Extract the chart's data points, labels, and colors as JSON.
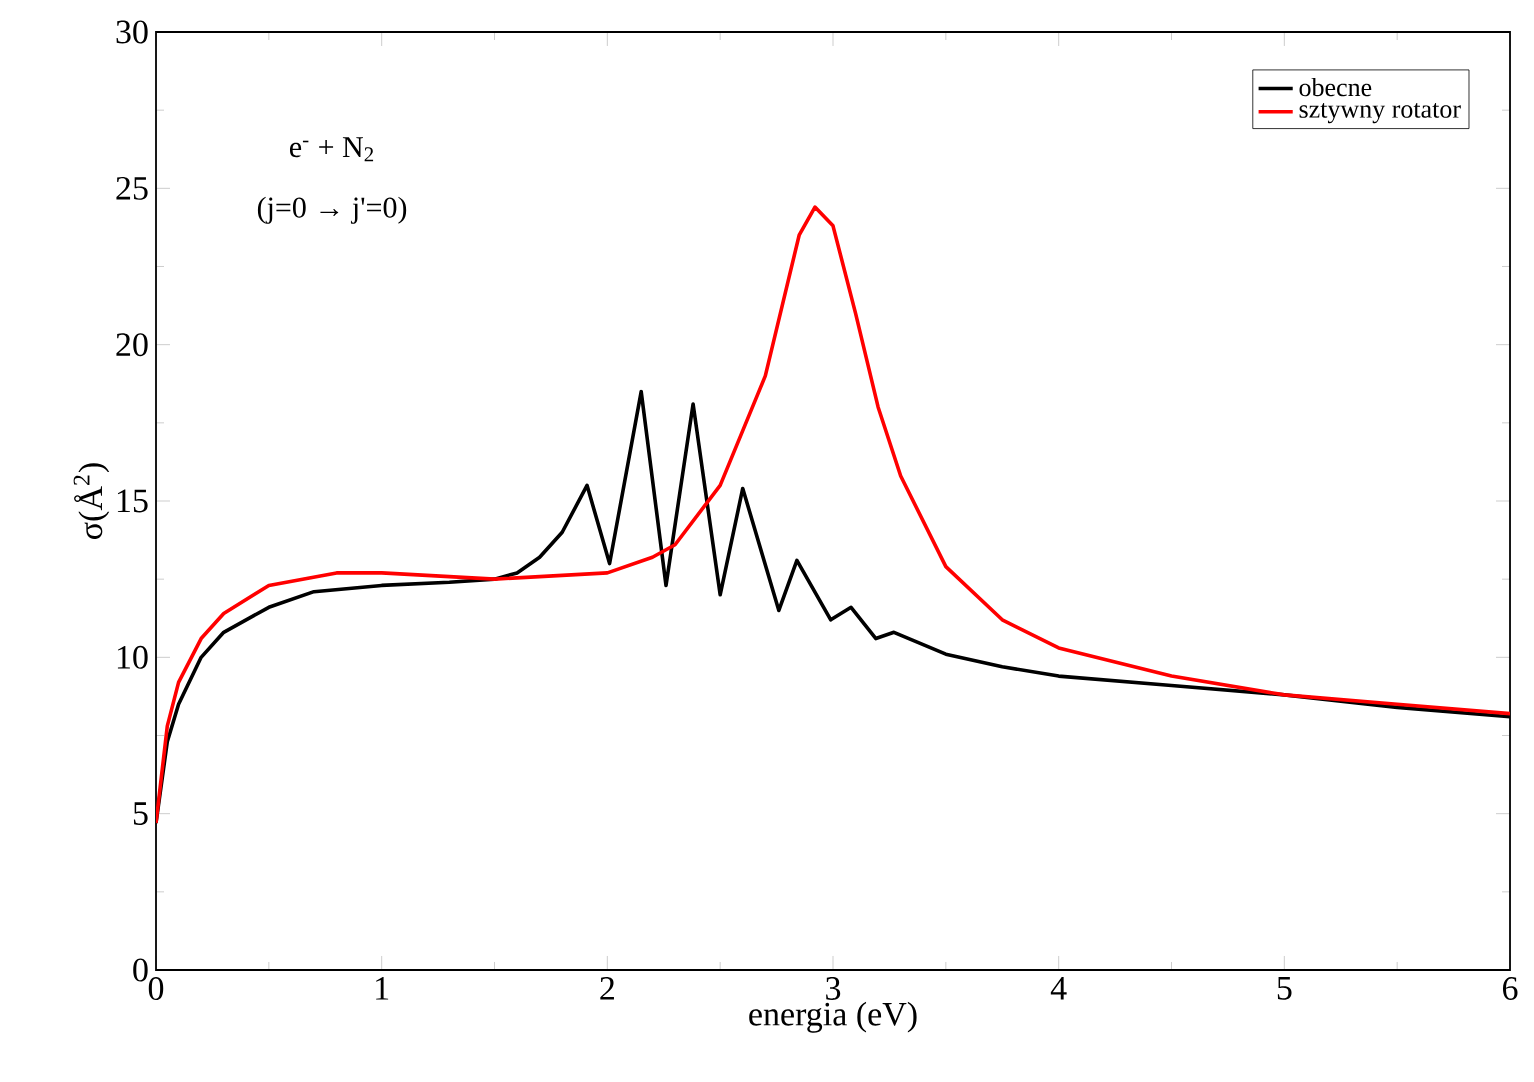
{
  "chart_data": {
    "type": "line",
    "xlabel": "energia (eV)",
    "ylabel": "σ(Å$^{2}$)",
    "annotations": [
      "e$^{-}$ + N$_{2}$",
      "(j=0 → j'=0)"
    ],
    "xlim": [
      0,
      6
    ],
    "ylim": [
      0,
      30
    ],
    "xticks": [
      0,
      1,
      2,
      3,
      4,
      5,
      6
    ],
    "yticks": [
      0,
      5,
      10,
      15,
      20,
      25,
      30
    ],
    "grid": false,
    "legend": "top right",
    "line_style": "solid",
    "marker": "none",
    "series": [
      {
        "name": "obecne",
        "color": "#000000",
        "x": [
          0,
          0.05,
          0.1,
          0.2,
          0.3,
          0.5,
          0.7,
          1.0,
          1.3,
          1.5,
          1.6,
          1.7,
          1.8,
          1.91,
          2.01,
          2.15,
          2.26,
          2.38,
          2.5,
          2.6,
          2.76,
          2.84,
          2.99,
          3.08,
          3.19,
          3.27,
          3.5,
          3.75,
          4.0,
          4.5,
          5.0,
          5.5,
          6.0
        ],
        "values": [
          4.7,
          7.3,
          8.5,
          10.0,
          10.8,
          11.6,
          12.1,
          12.3,
          12.4,
          12.5,
          12.7,
          13.2,
          14.0,
          15.5,
          13.0,
          18.5,
          12.3,
          18.1,
          12.0,
          15.4,
          11.5,
          13.1,
          11.2,
          11.6,
          10.6,
          10.8,
          10.1,
          9.7,
          9.4,
          9.1,
          8.8,
          8.4,
          8.1
        ]
      },
      {
        "name": "sztywny rotator",
        "color": "#ff0000",
        "x": [
          0,
          0.05,
          0.1,
          0.2,
          0.3,
          0.5,
          0.8,
          1.0,
          1.5,
          2.0,
          2.2,
          2.3,
          2.5,
          2.7,
          2.85,
          2.92,
          3.0,
          3.1,
          3.2,
          3.3,
          3.5,
          3.75,
          4.0,
          4.5,
          5.0,
          5.5,
          6.0
        ],
        "values": [
          4.7,
          7.8,
          9.2,
          10.6,
          11.4,
          12.3,
          12.7,
          12.7,
          12.5,
          12.7,
          13.2,
          13.6,
          15.5,
          19.0,
          23.5,
          24.4,
          23.8,
          21.0,
          18.0,
          15.8,
          12.9,
          11.2,
          10.3,
          9.4,
          8.8,
          8.5,
          8.2
        ]
      }
    ]
  }
}
